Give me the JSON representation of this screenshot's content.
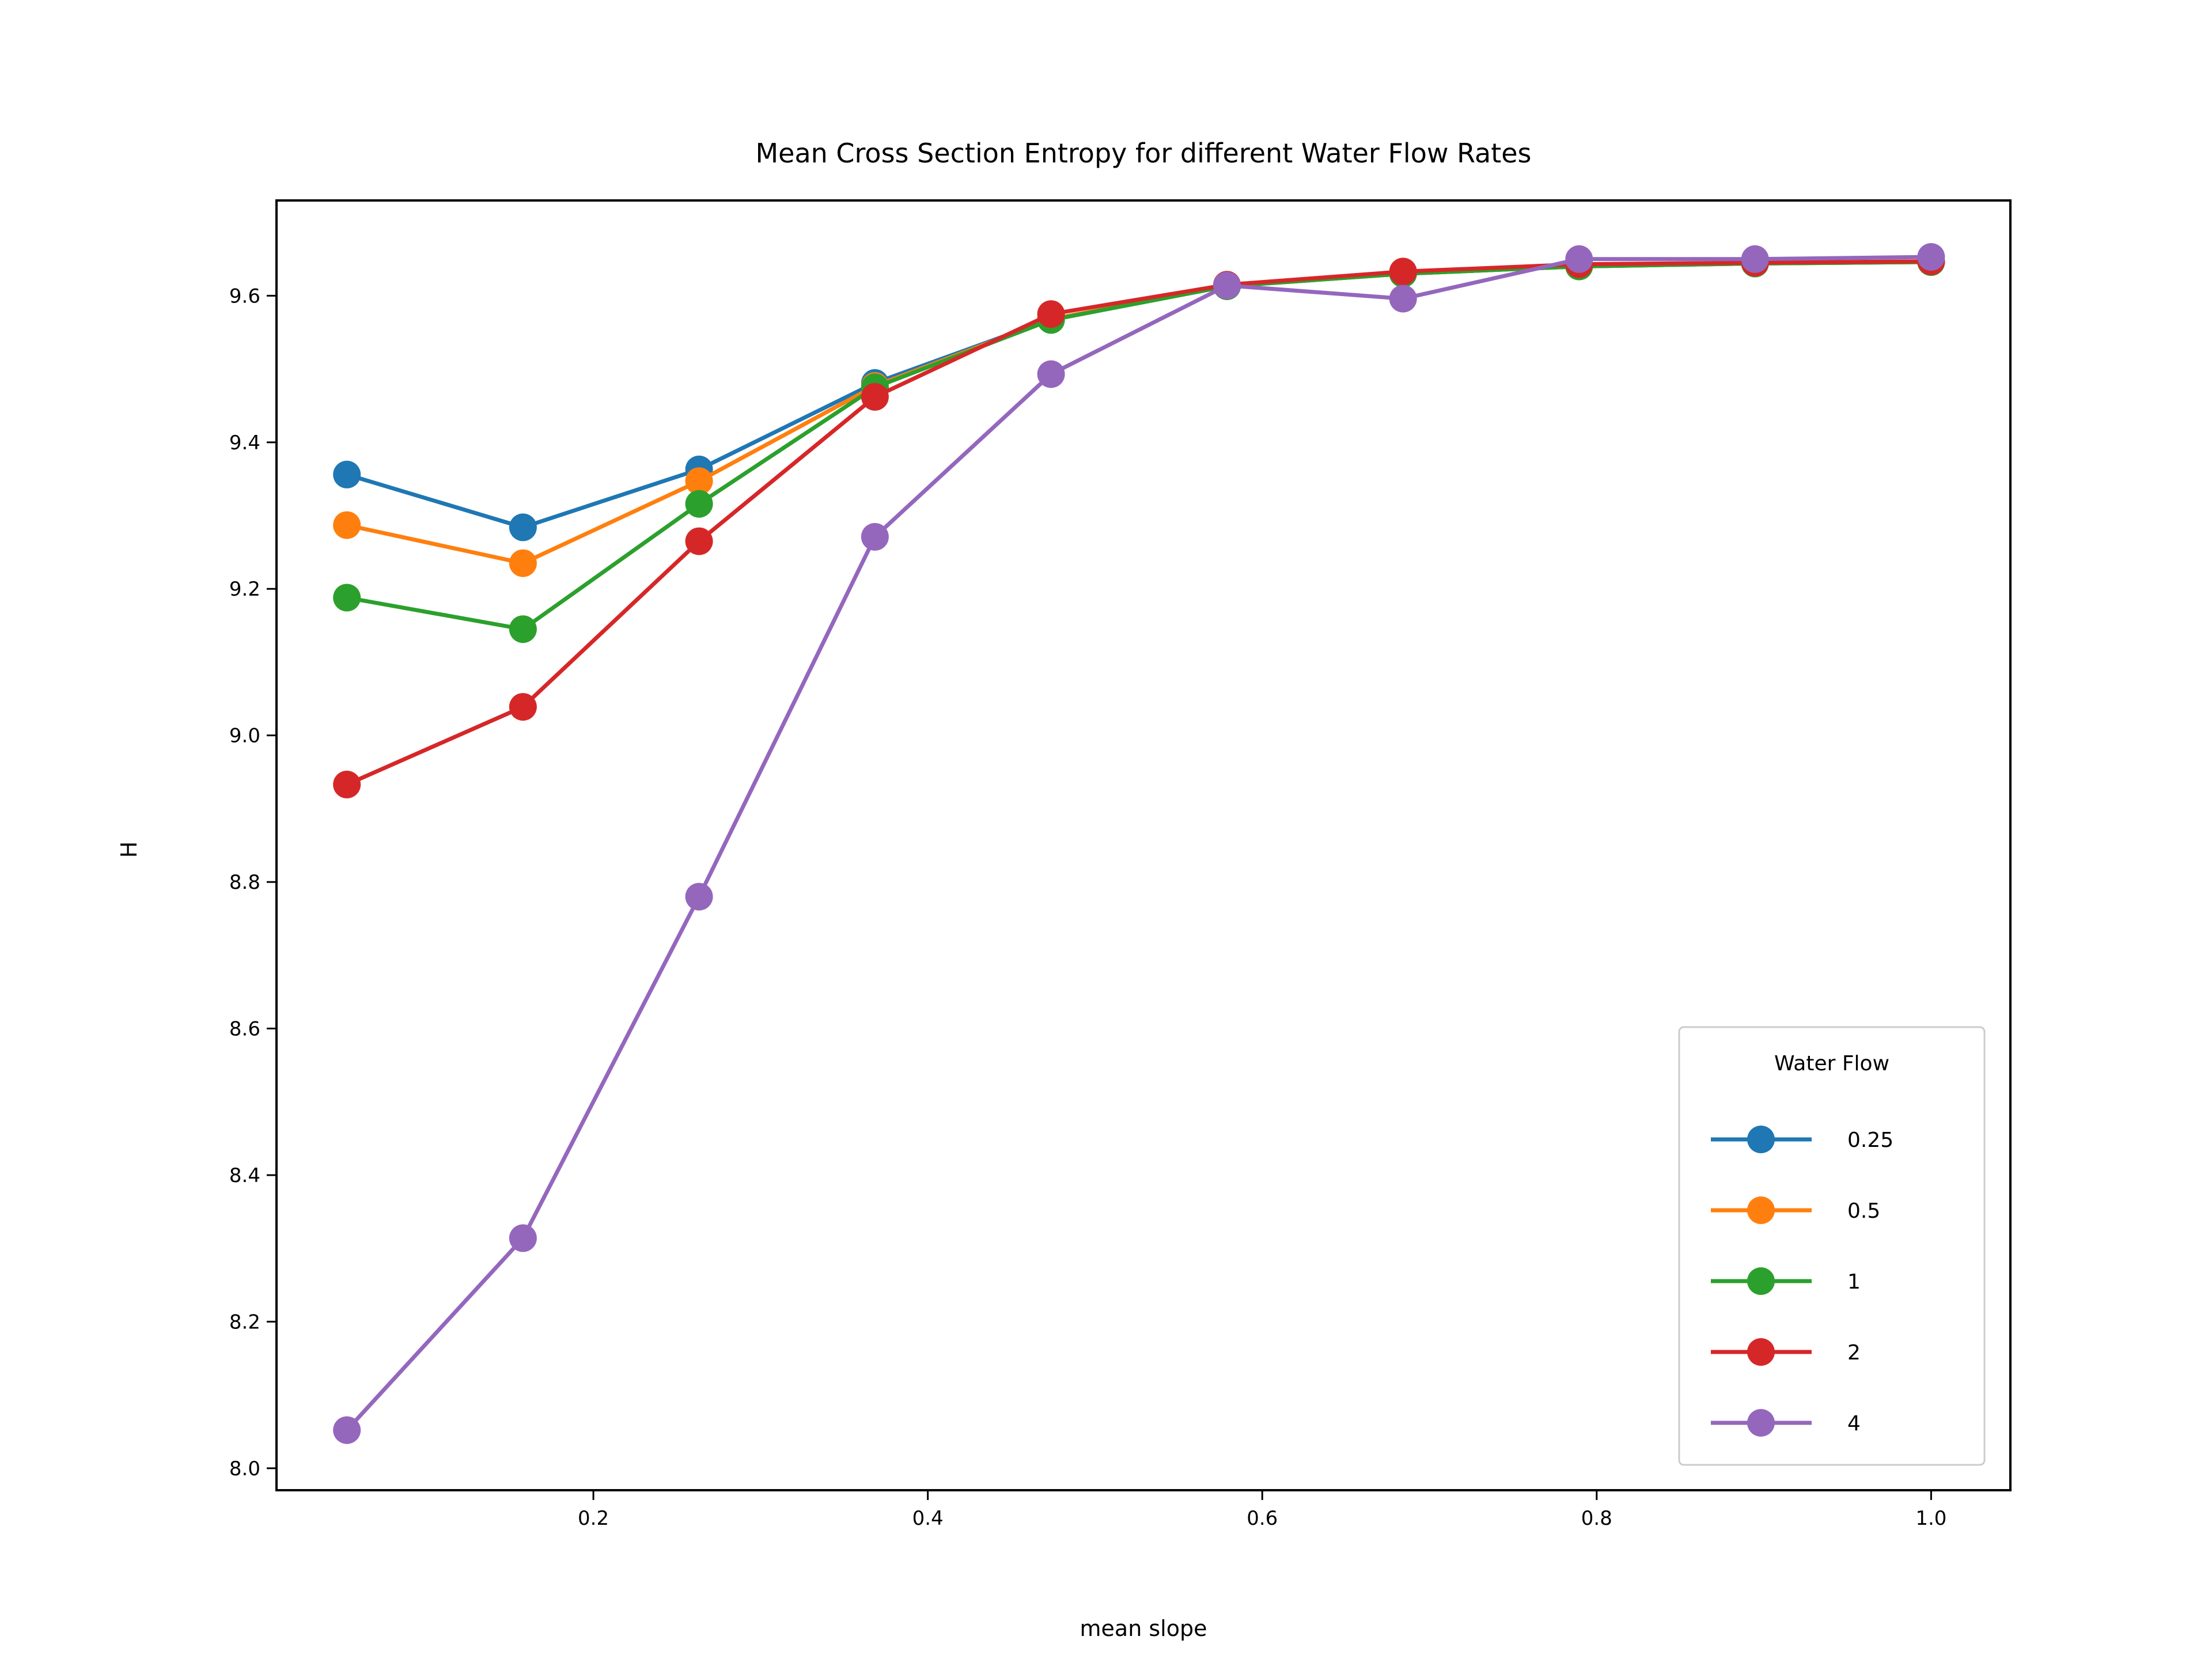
{
  "chart_data": {
    "type": "line",
    "title": "Mean Cross Section Entropy for different Water Flow Rates",
    "xlabel": "mean slope",
    "ylabel": "H",
    "xlim": [
      0.0105,
      1.0474
    ],
    "ylim": [
      7.97,
      9.73
    ],
    "xticks": [
      0.2,
      0.4,
      0.6,
      0.8,
      1.0
    ],
    "xtick_labels": [
      "0.2",
      "0.4",
      "0.6",
      "0.8",
      "1.0"
    ],
    "yticks": [
      8.0,
      8.2,
      8.4,
      8.6,
      8.8,
      9.0,
      9.2,
      9.4,
      9.6
    ],
    "ytick_labels": [
      "8.0",
      "8.2",
      "8.4",
      "8.6",
      "8.8",
      "9.0",
      "9.2",
      "9.4",
      "9.6"
    ],
    "grid": false,
    "legend": {
      "title": "Water Flow",
      "position": "lower-right"
    },
    "x": [
      0.0526,
      0.1579,
      0.2632,
      0.3684,
      0.4737,
      0.5789,
      0.6842,
      0.7895,
      0.8947,
      1.0
    ],
    "series": [
      {
        "name": "0.25",
        "color": "#1f77b4",
        "values": [
          9.356,
          9.284,
          9.363,
          9.481,
          9.568,
          9.613,
          9.63,
          9.64,
          9.644,
          9.646
        ]
      },
      {
        "name": "0.5",
        "color": "#ff7f0e",
        "values": [
          9.287,
          9.235,
          9.347,
          9.477,
          9.568,
          9.613,
          9.63,
          9.64,
          9.644,
          9.646
        ]
      },
      {
        "name": "1",
        "color": "#2ca02c",
        "values": [
          9.188,
          9.145,
          9.316,
          9.475,
          9.567,
          9.613,
          9.63,
          9.64,
          9.644,
          9.646
        ]
      },
      {
        "name": "2",
        "color": "#d62728",
        "values": [
          8.933,
          9.039,
          9.265,
          9.462,
          9.575,
          9.615,
          9.633,
          9.643,
          9.645,
          9.647
        ]
      },
      {
        "name": "4",
        "color": "#9467bd",
        "values": [
          8.052,
          8.314,
          8.78,
          9.271,
          9.493,
          9.614,
          9.596,
          9.65,
          9.65,
          9.653
        ]
      }
    ]
  }
}
